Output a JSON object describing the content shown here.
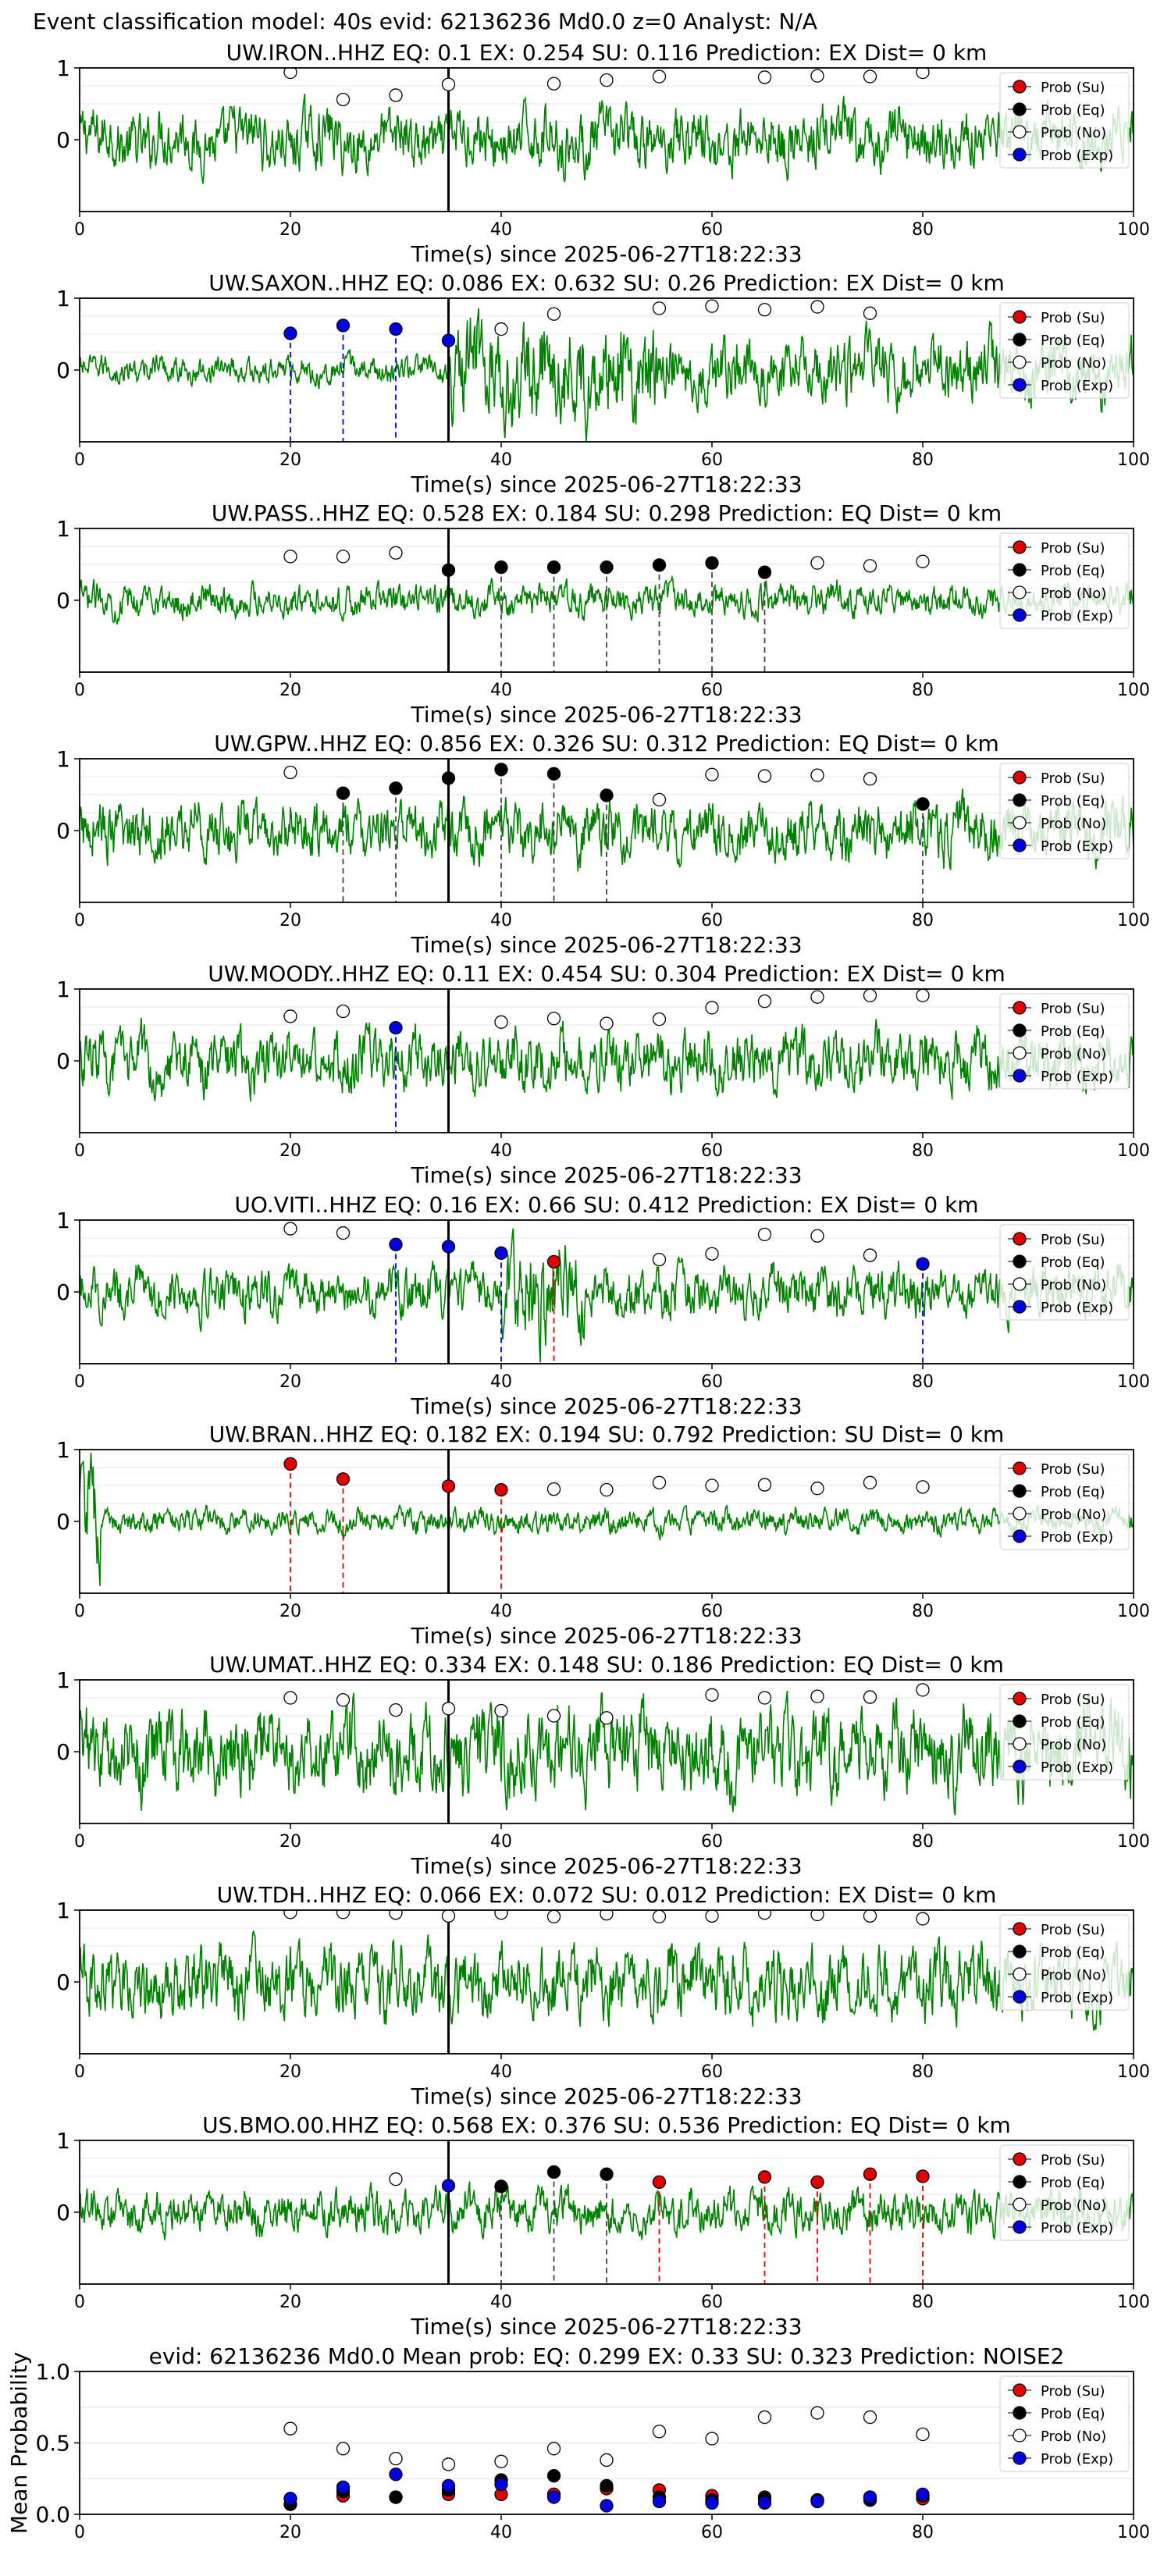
{
  "figure_title": "Event classification model: 40s evid: 62136236 Md0.0 z=0 Analyst: N/A",
  "legend_labels": [
    "Prob (Su)",
    "Prob (Eq)",
    "Prob (No)",
    "Prob (Exp)"
  ],
  "colors": {
    "su": "#e00000",
    "eq": "#000000",
    "no": "#ffffff",
    "exp": "#0000e0",
    "waveform": "#008000",
    "pick": "#000000"
  },
  "chart_data": [
    {
      "type": "line",
      "title": "UW.IRON..HHZ    EQ: 0.1   EX: 0.254   SU: 0.116    Prediction: EX    Dist= 0 km",
      "xlabel": "Time(s) since 2025-06-27T18:22:33",
      "ylabel": "",
      "xlim": [
        0,
        100
      ],
      "ylim": [
        -1,
        1
      ],
      "xticks": [
        0,
        20,
        40,
        60,
        80,
        100
      ],
      "yticks": [
        1,
        0
      ],
      "pick_time": 35,
      "points": [
        {
          "x": 20,
          "y": 0.94,
          "cls": "no"
        },
        {
          "x": 25,
          "y": 0.56,
          "cls": "no"
        },
        {
          "x": 30,
          "y": 0.62,
          "cls": "no"
        },
        {
          "x": 35,
          "y": 0.77,
          "cls": "no"
        },
        {
          "x": 45,
          "y": 0.78,
          "cls": "no"
        },
        {
          "x": 50,
          "y": 0.83,
          "cls": "no"
        },
        {
          "x": 55,
          "y": 0.88,
          "cls": "no"
        },
        {
          "x": 65,
          "y": 0.87,
          "cls": "no"
        },
        {
          "x": 70,
          "y": 0.89,
          "cls": "no"
        },
        {
          "x": 75,
          "y": 0.88,
          "cls": "no"
        },
        {
          "x": 80,
          "y": 0.94,
          "cls": "no"
        }
      ],
      "dashed_lines": []
    },
    {
      "type": "line",
      "title": "UW.SAXON..HHZ   EQ: 0.086  EX: 0.632  SU: 0.26   Prediction: EX    Dist= 0 km",
      "xlabel": "Time(s) since 2025-06-27T18:22:33",
      "ylabel": "",
      "xlim": [
        0,
        100
      ],
      "ylim": [
        -1,
        1
      ],
      "xticks": [
        0,
        20,
        40,
        60,
        80,
        100
      ],
      "yticks": [
        1,
        0
      ],
      "pick_time": 35,
      "points": [
        {
          "x": 20,
          "y": 0.51,
          "cls": "exp"
        },
        {
          "x": 25,
          "y": 0.62,
          "cls": "exp"
        },
        {
          "x": 30,
          "y": 0.57,
          "cls": "exp"
        },
        {
          "x": 35,
          "y": 0.41,
          "cls": "exp"
        },
        {
          "x": 40,
          "y": 0.57,
          "cls": "no"
        },
        {
          "x": 45,
          "y": 0.78,
          "cls": "no"
        },
        {
          "x": 55,
          "y": 0.86,
          "cls": "no"
        },
        {
          "x": 60,
          "y": 0.89,
          "cls": "no"
        },
        {
          "x": 65,
          "y": 0.84,
          "cls": "no"
        },
        {
          "x": 70,
          "y": 0.88,
          "cls": "no"
        },
        {
          "x": 75,
          "y": 0.79,
          "cls": "no"
        }
      ],
      "dashed_lines": [
        {
          "x": 20,
          "cls": "exp"
        },
        {
          "x": 25,
          "cls": "exp"
        },
        {
          "x": 30,
          "cls": "exp"
        }
      ]
    },
    {
      "type": "line",
      "title": "UW.PASS..HHZ   EQ: 0.528  EX: 0.184  SU: 0.298   Prediction: EQ    Dist= 0 km",
      "xlabel": "Time(s) since 2025-06-27T18:22:33",
      "ylabel": "",
      "xlim": [
        0,
        100
      ],
      "ylim": [
        -1,
        1
      ],
      "xticks": [
        0,
        20,
        40,
        60,
        80,
        100
      ],
      "yticks": [
        1,
        0
      ],
      "pick_time": 35,
      "points": [
        {
          "x": 20,
          "y": 0.61,
          "cls": "no"
        },
        {
          "x": 25,
          "y": 0.61,
          "cls": "no"
        },
        {
          "x": 30,
          "y": 0.66,
          "cls": "no"
        },
        {
          "x": 35,
          "y": 0.42,
          "cls": "eq"
        },
        {
          "x": 40,
          "y": 0.46,
          "cls": "eq"
        },
        {
          "x": 45,
          "y": 0.46,
          "cls": "eq"
        },
        {
          "x": 50,
          "y": 0.46,
          "cls": "eq"
        },
        {
          "x": 55,
          "y": 0.49,
          "cls": "eq"
        },
        {
          "x": 60,
          "y": 0.52,
          "cls": "eq"
        },
        {
          "x": 65,
          "y": 0.39,
          "cls": "eq"
        },
        {
          "x": 70,
          "y": 0.52,
          "cls": "no"
        },
        {
          "x": 75,
          "y": 0.48,
          "cls": "no"
        },
        {
          "x": 80,
          "y": 0.54,
          "cls": "no"
        }
      ],
      "dashed_lines": [
        {
          "x": 40,
          "cls": "eq"
        },
        {
          "x": 45,
          "cls": "eq"
        },
        {
          "x": 50,
          "cls": "eq"
        },
        {
          "x": 55,
          "cls": "eq"
        },
        {
          "x": 60,
          "cls": "eq"
        },
        {
          "x": 65,
          "cls": "eq"
        }
      ]
    },
    {
      "type": "line",
      "title": "UW.GPW..HHZ   EQ: 0.856  EX: 0.326  SU: 0.312   Prediction: EQ    Dist= 0 km",
      "xlabel": "Time(s) since 2025-06-27T18:22:33",
      "ylabel": "",
      "xlim": [
        0,
        100
      ],
      "ylim": [
        -1,
        1
      ],
      "xticks": [
        0,
        20,
        40,
        60,
        80,
        100
      ],
      "yticks": [
        1,
        0
      ],
      "pick_time": 35,
      "points": [
        {
          "x": 20,
          "y": 0.81,
          "cls": "no"
        },
        {
          "x": 25,
          "y": 0.52,
          "cls": "eq"
        },
        {
          "x": 30,
          "y": 0.59,
          "cls": "eq"
        },
        {
          "x": 35,
          "y": 0.73,
          "cls": "eq"
        },
        {
          "x": 40,
          "y": 0.85,
          "cls": "eq"
        },
        {
          "x": 45,
          "y": 0.79,
          "cls": "eq"
        },
        {
          "x": 50,
          "y": 0.49,
          "cls": "eq"
        },
        {
          "x": 55,
          "y": 0.43,
          "cls": "no"
        },
        {
          "x": 60,
          "y": 0.78,
          "cls": "no"
        },
        {
          "x": 65,
          "y": 0.76,
          "cls": "no"
        },
        {
          "x": 70,
          "y": 0.77,
          "cls": "no"
        },
        {
          "x": 75,
          "y": 0.72,
          "cls": "no"
        },
        {
          "x": 80,
          "y": 0.37,
          "cls": "eq"
        }
      ],
      "dashed_lines": [
        {
          "x": 25,
          "cls": "eq"
        },
        {
          "x": 30,
          "cls": "eq"
        },
        {
          "x": 40,
          "cls": "eq"
        },
        {
          "x": 45,
          "cls": "eq"
        },
        {
          "x": 50,
          "cls": "eq"
        },
        {
          "x": 80,
          "cls": "eq"
        }
      ]
    },
    {
      "type": "line",
      "title": "UW.MOODY..HHZ   EQ: 0.11  EX: 0.454  SU: 0.304   Prediction: EX    Dist= 0 km",
      "xlabel": "Time(s) since 2025-06-27T18:22:33",
      "ylabel": "",
      "xlim": [
        0,
        100
      ],
      "ylim": [
        -1,
        1
      ],
      "xticks": [
        0,
        20,
        40,
        60,
        80,
        100
      ],
      "yticks": [
        1,
        0
      ],
      "pick_time": 35,
      "points": [
        {
          "x": 20,
          "y": 0.62,
          "cls": "no"
        },
        {
          "x": 25,
          "y": 0.69,
          "cls": "no"
        },
        {
          "x": 30,
          "y": 0.46,
          "cls": "exp"
        },
        {
          "x": 40,
          "y": 0.54,
          "cls": "no"
        },
        {
          "x": 45,
          "y": 0.59,
          "cls": "no"
        },
        {
          "x": 50,
          "y": 0.52,
          "cls": "no"
        },
        {
          "x": 55,
          "y": 0.58,
          "cls": "no"
        },
        {
          "x": 60,
          "y": 0.74,
          "cls": "no"
        },
        {
          "x": 65,
          "y": 0.83,
          "cls": "no"
        },
        {
          "x": 70,
          "y": 0.89,
          "cls": "no"
        },
        {
          "x": 75,
          "y": 0.91,
          "cls": "no"
        },
        {
          "x": 80,
          "y": 0.91,
          "cls": "no"
        }
      ],
      "dashed_lines": [
        {
          "x": 30,
          "cls": "exp"
        }
      ]
    },
    {
      "type": "line",
      "title": "UO.VITI..HHZ   EQ: 0.16  EX: 0.66  SU: 0.412   Prediction: EX    Dist= 0 km",
      "xlabel": "Time(s) since 2025-06-27T18:22:33",
      "ylabel": "",
      "xlim": [
        0,
        100
      ],
      "ylim": [
        -1,
        1
      ],
      "xticks": [
        0,
        20,
        40,
        60,
        80,
        100
      ],
      "yticks": [
        1,
        0
      ],
      "pick_time": 35,
      "points": [
        {
          "x": 20,
          "y": 0.88,
          "cls": "no"
        },
        {
          "x": 25,
          "y": 0.82,
          "cls": "no"
        },
        {
          "x": 30,
          "y": 0.66,
          "cls": "exp"
        },
        {
          "x": 35,
          "y": 0.63,
          "cls": "exp"
        },
        {
          "x": 40,
          "y": 0.54,
          "cls": "exp"
        },
        {
          "x": 45,
          "y": 0.42,
          "cls": "su"
        },
        {
          "x": 55,
          "y": 0.45,
          "cls": "no"
        },
        {
          "x": 60,
          "y": 0.53,
          "cls": "no"
        },
        {
          "x": 65,
          "y": 0.8,
          "cls": "no"
        },
        {
          "x": 70,
          "y": 0.78,
          "cls": "no"
        },
        {
          "x": 75,
          "y": 0.51,
          "cls": "no"
        },
        {
          "x": 80,
          "y": 0.39,
          "cls": "exp"
        }
      ],
      "dashed_lines": [
        {
          "x": 30,
          "cls": "exp"
        },
        {
          "x": 40,
          "cls": "exp"
        },
        {
          "x": 45,
          "cls": "su"
        },
        {
          "x": 80,
          "cls": "exp"
        }
      ]
    },
    {
      "type": "line",
      "title": "UW.BRAN..HHZ   EQ: 0.182  EX: 0.194  SU: 0.792   Prediction: SU    Dist= 0 km",
      "xlabel": "Time(s) since 2025-06-27T18:22:33",
      "ylabel": "",
      "xlim": [
        0,
        100
      ],
      "ylim": [
        -1,
        1
      ],
      "xticks": [
        0,
        20,
        40,
        60,
        80,
        100
      ],
      "yticks": [
        1,
        0
      ],
      "pick_time": 35,
      "points": [
        {
          "x": 20,
          "y": 0.8,
          "cls": "su"
        },
        {
          "x": 25,
          "y": 0.59,
          "cls": "su"
        },
        {
          "x": 35,
          "y": 0.49,
          "cls": "su"
        },
        {
          "x": 40,
          "y": 0.44,
          "cls": "su"
        },
        {
          "x": 45,
          "y": 0.45,
          "cls": "no"
        },
        {
          "x": 50,
          "y": 0.44,
          "cls": "no"
        },
        {
          "x": 55,
          "y": 0.54,
          "cls": "no"
        },
        {
          "x": 60,
          "y": 0.5,
          "cls": "no"
        },
        {
          "x": 65,
          "y": 0.51,
          "cls": "no"
        },
        {
          "x": 70,
          "y": 0.46,
          "cls": "no"
        },
        {
          "x": 75,
          "y": 0.54,
          "cls": "no"
        },
        {
          "x": 80,
          "y": 0.48,
          "cls": "no"
        }
      ],
      "dashed_lines": [
        {
          "x": 20,
          "cls": "su"
        },
        {
          "x": 25,
          "cls": "su"
        },
        {
          "x": 40,
          "cls": "su"
        }
      ]
    },
    {
      "type": "line",
      "title": "UW.UMAT..HHZ   EQ: 0.334  EX: 0.148  SU: 0.186   Prediction: EQ    Dist= 0 km",
      "xlabel": "Time(s) since 2025-06-27T18:22:33",
      "ylabel": "",
      "xlim": [
        0,
        100
      ],
      "ylim": [
        -1,
        1
      ],
      "xticks": [
        0,
        20,
        40,
        60,
        80,
        100
      ],
      "yticks": [
        1,
        0
      ],
      "pick_time": 35,
      "points": [
        {
          "x": 20,
          "y": 0.75,
          "cls": "no"
        },
        {
          "x": 25,
          "y": 0.72,
          "cls": "no"
        },
        {
          "x": 30,
          "y": 0.58,
          "cls": "no"
        },
        {
          "x": 35,
          "y": 0.6,
          "cls": "no"
        },
        {
          "x": 40,
          "y": 0.57,
          "cls": "no"
        },
        {
          "x": 45,
          "y": 0.5,
          "cls": "no"
        },
        {
          "x": 50,
          "y": 0.47,
          "cls": "no"
        },
        {
          "x": 60,
          "y": 0.79,
          "cls": "no"
        },
        {
          "x": 65,
          "y": 0.75,
          "cls": "no"
        },
        {
          "x": 70,
          "y": 0.77,
          "cls": "no"
        },
        {
          "x": 75,
          "y": 0.76,
          "cls": "no"
        },
        {
          "x": 80,
          "y": 0.86,
          "cls": "no"
        }
      ],
      "dashed_lines": []
    },
    {
      "type": "line",
      "title": "UW.TDH..HHZ   EQ: 0.066  EX: 0.072  SU: 0.012   Prediction: EX    Dist= 0 km",
      "xlabel": "Time(s) since 2025-06-27T18:22:33",
      "ylabel": "",
      "xlim": [
        0,
        100
      ],
      "ylim": [
        -1,
        1
      ],
      "xticks": [
        0,
        20,
        40,
        60,
        80,
        100
      ],
      "yticks": [
        1,
        0
      ],
      "pick_time": 35,
      "points": [
        {
          "x": 20,
          "y": 0.97,
          "cls": "no"
        },
        {
          "x": 25,
          "y": 0.97,
          "cls": "no"
        },
        {
          "x": 30,
          "y": 0.96,
          "cls": "no"
        },
        {
          "x": 35,
          "y": 0.92,
          "cls": "no"
        },
        {
          "x": 40,
          "y": 0.96,
          "cls": "no"
        },
        {
          "x": 45,
          "y": 0.91,
          "cls": "no"
        },
        {
          "x": 50,
          "y": 0.95,
          "cls": "no"
        },
        {
          "x": 55,
          "y": 0.91,
          "cls": "no"
        },
        {
          "x": 60,
          "y": 0.92,
          "cls": "no"
        },
        {
          "x": 65,
          "y": 0.96,
          "cls": "no"
        },
        {
          "x": 70,
          "y": 0.94,
          "cls": "no"
        },
        {
          "x": 75,
          "y": 0.92,
          "cls": "no"
        },
        {
          "x": 80,
          "y": 0.88,
          "cls": "no"
        }
      ],
      "dashed_lines": []
    },
    {
      "type": "line",
      "title": "US.BMO.00.HHZ   EQ: 0.568  EX: 0.376  SU: 0.536   Prediction: EQ    Dist= 0 km",
      "xlabel": "Time(s) since 2025-06-27T18:22:33",
      "ylabel": "",
      "xlim": [
        0,
        100
      ],
      "ylim": [
        -1,
        1
      ],
      "xticks": [
        0,
        20,
        40,
        60,
        80,
        100
      ],
      "yticks": [
        1,
        0
      ],
      "pick_time": 35,
      "points": [
        {
          "x": 30,
          "y": 0.46,
          "cls": "no"
        },
        {
          "x": 35,
          "y": 0.37,
          "cls": "exp"
        },
        {
          "x": 40,
          "y": 0.36,
          "cls": "eq"
        },
        {
          "x": 45,
          "y": 0.56,
          "cls": "eq"
        },
        {
          "x": 50,
          "y": 0.53,
          "cls": "eq"
        },
        {
          "x": 55,
          "y": 0.42,
          "cls": "su"
        },
        {
          "x": 65,
          "y": 0.49,
          "cls": "su"
        },
        {
          "x": 70,
          "y": 0.42,
          "cls": "su"
        },
        {
          "x": 75,
          "y": 0.53,
          "cls": "su"
        },
        {
          "x": 80,
          "y": 0.5,
          "cls": "su"
        }
      ],
      "dashed_lines": [
        {
          "x": 40,
          "cls": "eq"
        },
        {
          "x": 45,
          "cls": "eq"
        },
        {
          "x": 50,
          "cls": "eq"
        },
        {
          "x": 55,
          "cls": "su"
        },
        {
          "x": 65,
          "cls": "su"
        },
        {
          "x": 70,
          "cls": "su"
        },
        {
          "x": 75,
          "cls": "su"
        },
        {
          "x": 80,
          "cls": "su"
        }
      ]
    },
    {
      "type": "scatter",
      "title": "evid: 62136236  Md0.0   Mean prob:   EQ: 0.299  EX: 0.33  SU: 0.323   Prediction: NOISE2",
      "xlabel": "",
      "ylabel": "Mean Probability",
      "xlim": [
        0,
        100
      ],
      "ylim": [
        0,
        1
      ],
      "xticks": [
        0,
        20,
        40,
        60,
        80,
        100
      ],
      "yticks": [
        1.0,
        0.5,
        0.0
      ],
      "x": [
        20,
        25,
        30,
        35,
        40,
        45,
        50,
        55,
        60,
        65,
        70,
        75,
        80
      ],
      "series": [
        {
          "cls": "no",
          "values": [
            0.6,
            0.46,
            0.39,
            0.35,
            0.37,
            0.46,
            0.38,
            0.58,
            0.53,
            0.68,
            0.71,
            0.68,
            0.56
          ]
        },
        {
          "cls": "su",
          "values": [
            0.11,
            0.13,
            0.12,
            0.14,
            0.14,
            0.14,
            0.18,
            0.17,
            0.13,
            0.12,
            0.1,
            0.12,
            0.11
          ]
        },
        {
          "cls": "eq",
          "values": [
            0.07,
            0.16,
            0.12,
            0.17,
            0.24,
            0.27,
            0.2,
            0.12,
            0.1,
            0.11,
            0.1,
            0.1,
            0.13
          ]
        },
        {
          "cls": "exp",
          "values": [
            0.11,
            0.19,
            0.28,
            0.2,
            0.21,
            0.12,
            0.06,
            0.09,
            0.08,
            0.08,
            0.09,
            0.12,
            0.14
          ]
        }
      ]
    }
  ]
}
